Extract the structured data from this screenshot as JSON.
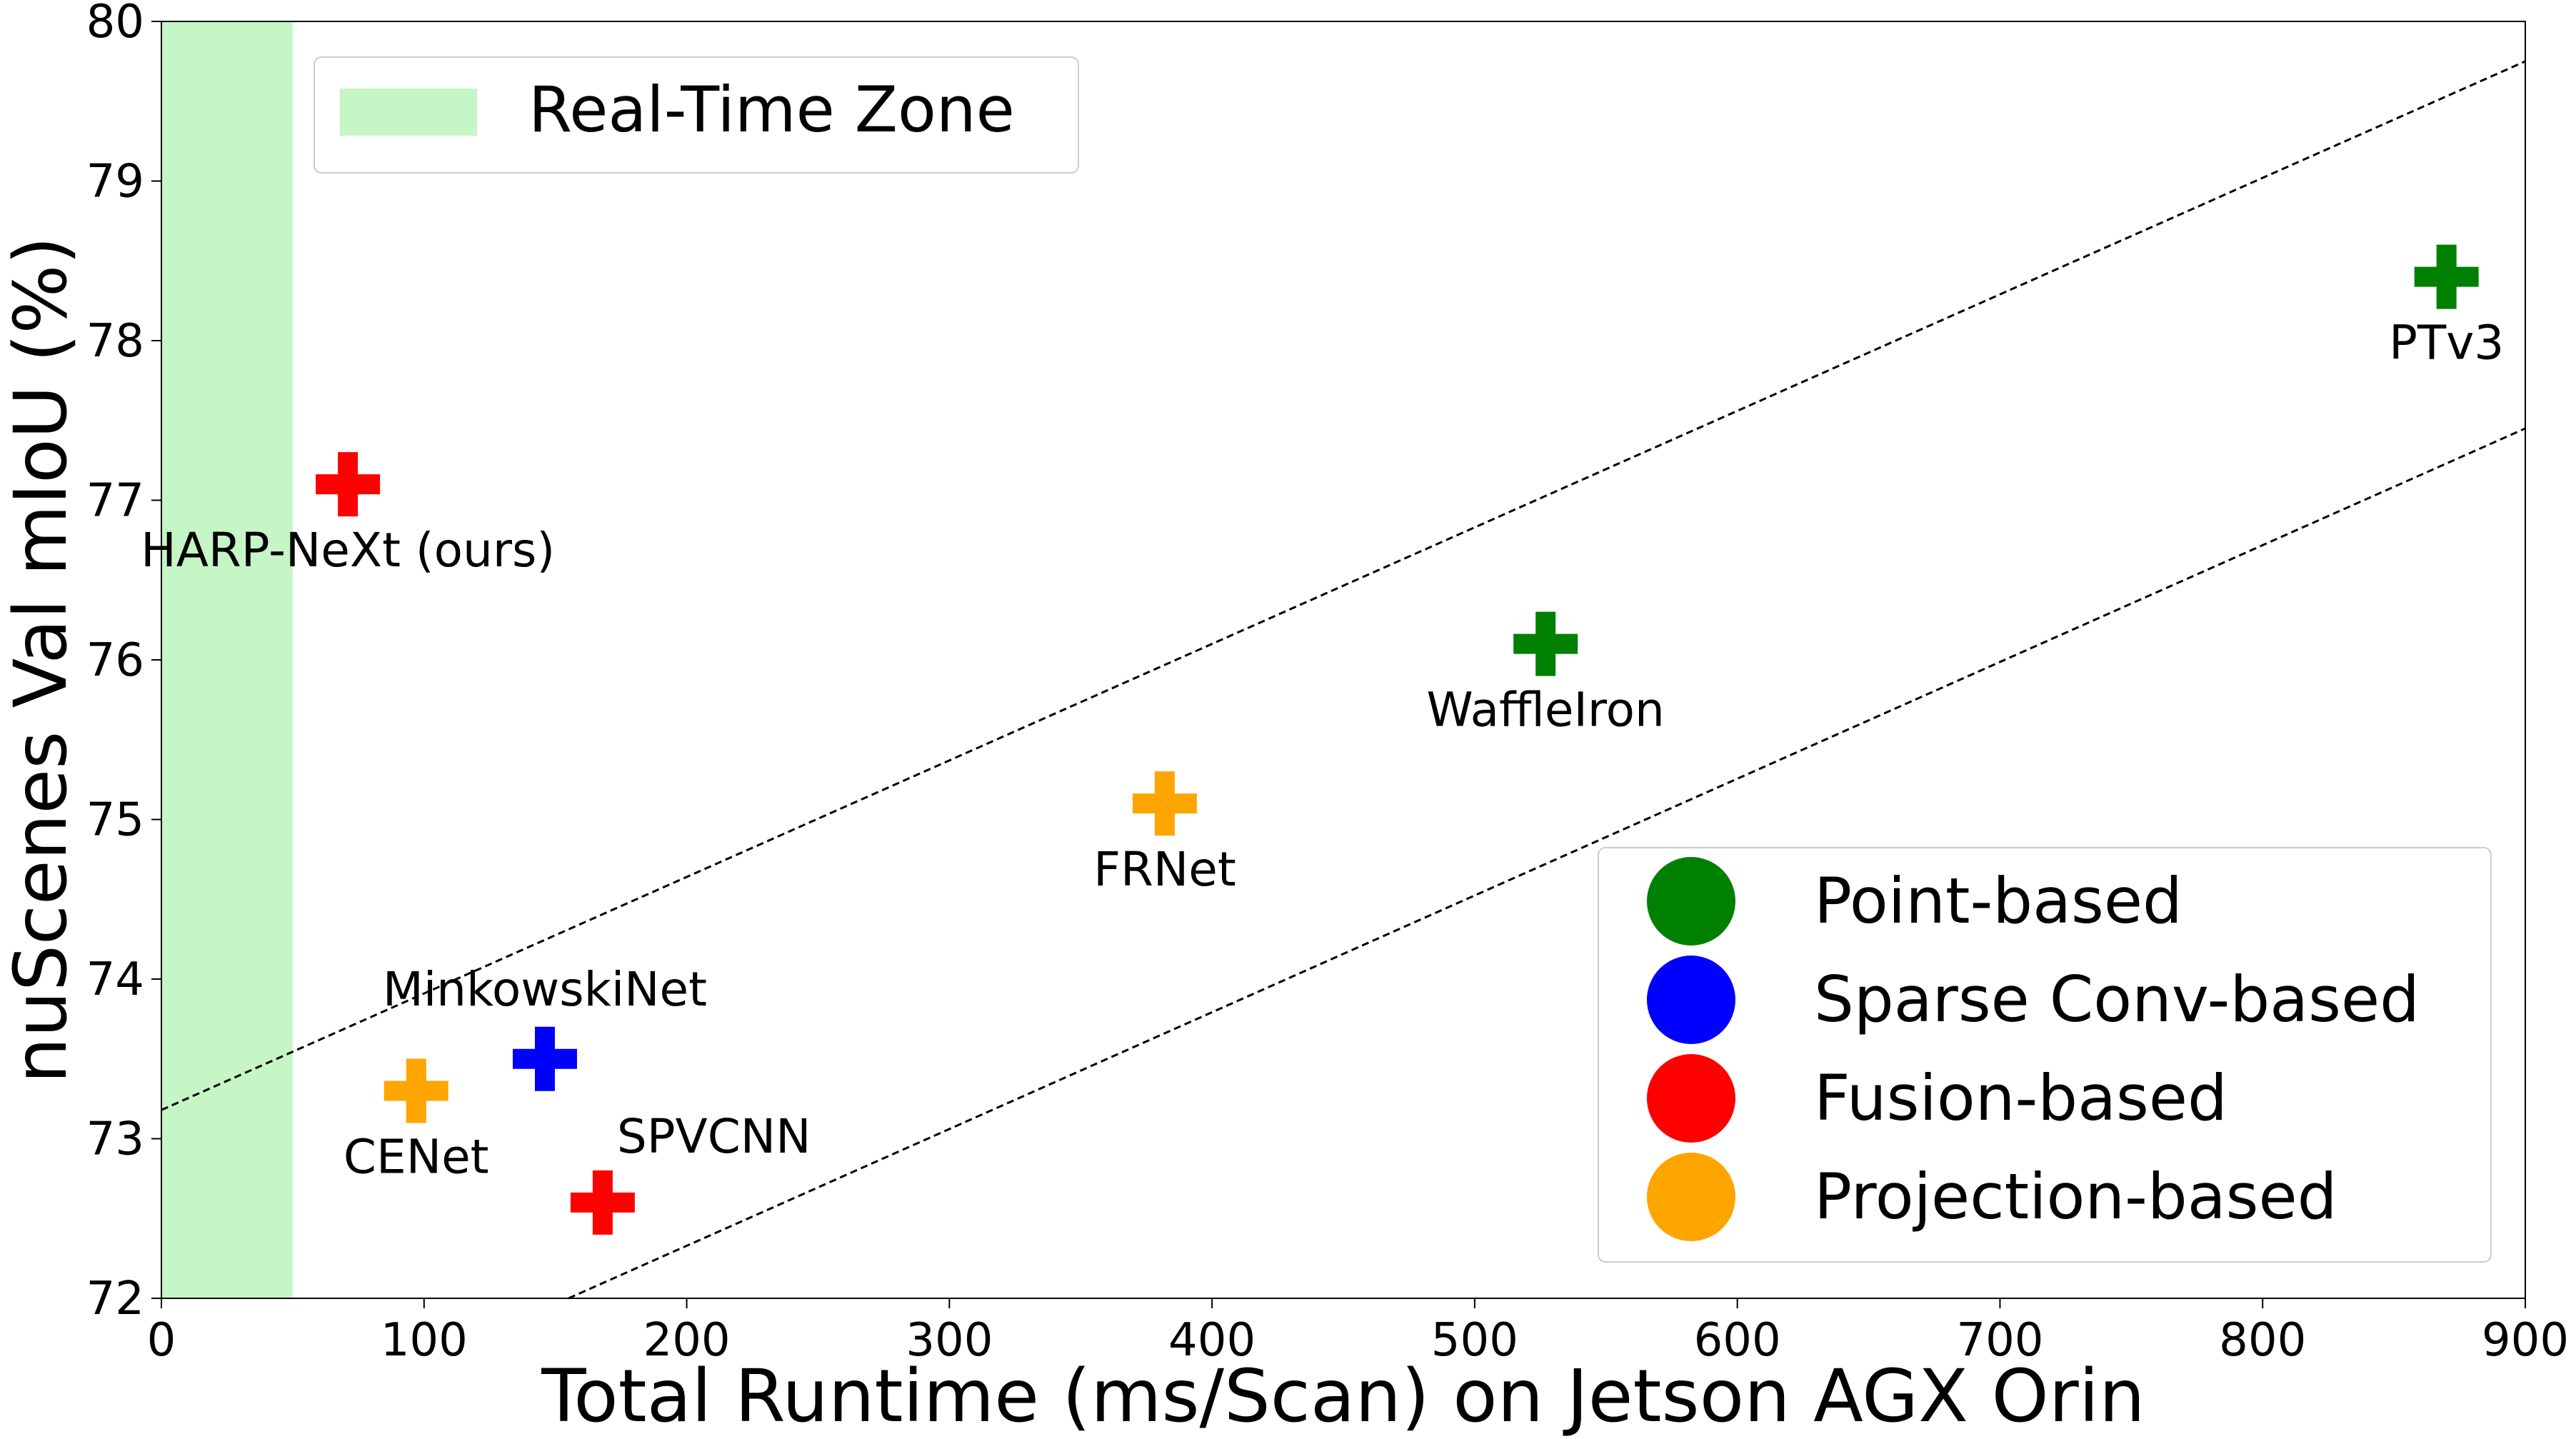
{
  "chart_data": {
    "type": "scatter",
    "xlabel": "Total Runtime (ms/Scan) on Jetson AGX Orin",
    "ylabel": "nuScenes Val mIoU (%)",
    "xlim": [
      0,
      900
    ],
    "ylim": [
      72,
      80
    ],
    "xticks": [
      "0",
      "100",
      "200",
      "300",
      "400",
      "500",
      "600",
      "700",
      "800",
      "900"
    ],
    "yticks": [
      "72",
      "73",
      "74",
      "75",
      "76",
      "77",
      "78",
      "79",
      "80"
    ],
    "marker": "plus",
    "grid": false,
    "real_time_zone": {
      "label": "Real-Time Zone",
      "x_range": [
        0,
        50
      ],
      "color": "#c6f5c6"
    },
    "reference_lines": [
      {
        "style": "dashed",
        "points": [
          [
            0,
            73.18
          ],
          [
            900,
            79.75
          ]
        ]
      },
      {
        "style": "dashed",
        "points": [
          [
            155,
            72
          ],
          [
            900,
            77.45
          ]
        ]
      }
    ],
    "categories": [
      {
        "name": "Point-based",
        "color": "#008000"
      },
      {
        "name": "Sparse Conv-based",
        "color": "#0000ff"
      },
      {
        "name": "Fusion-based",
        "color": "#ff0000"
      },
      {
        "name": "Projection-based",
        "color": "#ffa500"
      }
    ],
    "points": [
      {
        "label": "HARP-NeXt (ours)",
        "x": 71,
        "y": 77.1,
        "category": "Fusion-based",
        "label_pos": "below"
      },
      {
        "label": "PTv3",
        "x": 870,
        "y": 78.4,
        "category": "Point-based",
        "label_pos": "below"
      },
      {
        "label": "WaffleIron",
        "x": 527,
        "y": 76.1,
        "category": "Point-based",
        "label_pos": "below"
      },
      {
        "label": "FRNet",
        "x": 382,
        "y": 75.1,
        "category": "Projection-based",
        "label_pos": "below"
      },
      {
        "label": "MinkowskiNet",
        "x": 146,
        "y": 73.5,
        "category": "Sparse Conv-based",
        "label_pos": "above"
      },
      {
        "label": "CENet",
        "x": 97,
        "y": 73.3,
        "category": "Projection-based",
        "label_pos": "below"
      },
      {
        "label": "SPVCNN",
        "x": 168,
        "y": 72.6,
        "category": "Fusion-based",
        "label_pos": "above-right"
      }
    ]
  }
}
